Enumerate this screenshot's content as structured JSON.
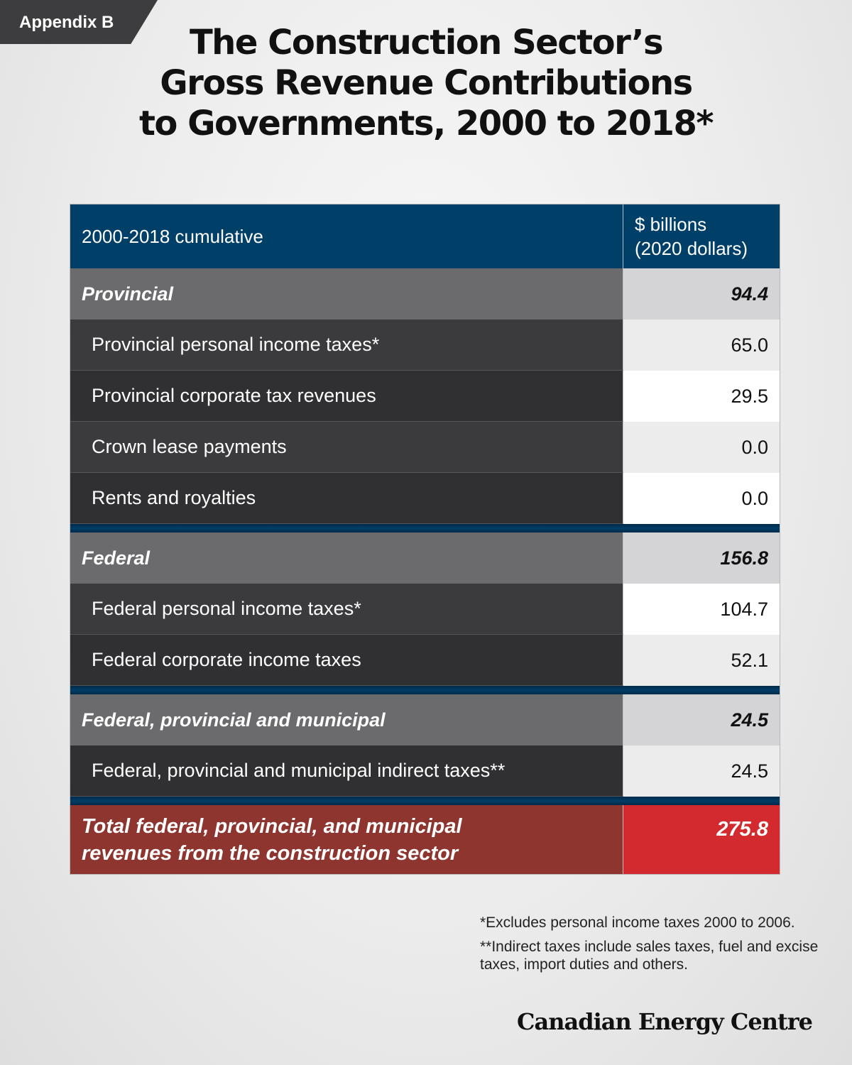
{
  "tag": "Appendix B",
  "title": [
    "The Construction Sector’s",
    "Gross Revenue Contributions",
    "to Governments, 2000 to 2018*"
  ],
  "table": {
    "header": {
      "label": "2000-2018 cumulative",
      "value_line1": "$ billions",
      "value_line2": "(2020 dollars)"
    },
    "provincial": {
      "label": "Provincial",
      "value": "94.4",
      "items": [
        {
          "label": "Provincial personal income taxes*",
          "value": "65.0"
        },
        {
          "label": "Provincial corporate tax revenues",
          "value": "29.5"
        },
        {
          "label": "Crown lease payments",
          "value": "0.0"
        },
        {
          "label": "Rents and royalties",
          "value": "0.0"
        }
      ]
    },
    "federal": {
      "label": "Federal",
      "value": "156.8",
      "items": [
        {
          "label": "Federal personal income taxes*",
          "value": "104.7"
        },
        {
          "label": "Federal corporate income taxes",
          "value": "52.1"
        }
      ]
    },
    "fpm": {
      "label": "Federal, provincial and municipal",
      "value": "24.5",
      "items": [
        {
          "label": "Federal, provincial and municipal indirect taxes**",
          "value": "24.5"
        }
      ]
    },
    "total": {
      "label_line1": "Total federal, provincial, and municipal",
      "label_line2": "revenues from the construction sector",
      "value": "275.8"
    }
  },
  "notes": {
    "note1": "*Excludes personal income taxes 2000 to 2006.",
    "note2": "**Indirect taxes include sales taxes, fuel and excise taxes, import duties and others."
  },
  "logo": "Canadian Energy Centre"
}
